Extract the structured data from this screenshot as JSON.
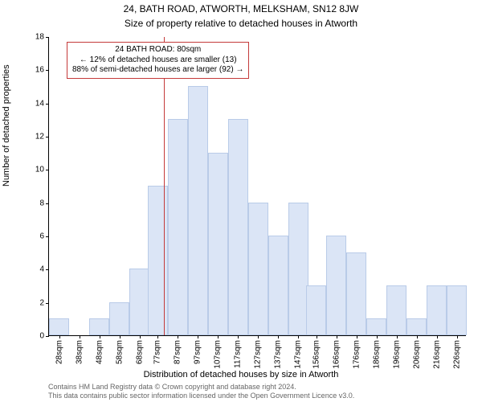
{
  "titles": {
    "line1": "24, BATH ROAD, ATWORTH, MELKSHAM, SN12 8JW",
    "line2": "Size of property relative to detached houses in Atworth"
  },
  "ylabel": "Number of detached properties",
  "xlabel": "Distribution of detached houses by size in Atworth",
  "footer": {
    "line1": "Contains HM Land Registry data © Crown copyright and database right 2024.",
    "line2": "This data contains public sector information licensed under the Open Government Licence v3.0."
  },
  "annotation": {
    "line1": "24 BATH ROAD: 80sqm",
    "line2": "← 12% of detached houses are smaller (13)",
    "line3": "88% of semi-detached houses are larger (92) →"
  },
  "chart": {
    "type": "histogram",
    "background_color": "#ffffff",
    "bar_fill": "#dbe5f6",
    "bar_border": "#b9cbe8",
    "refline_color": "#c43a3a",
    "annotation_border": "#c43a3a",
    "text_color": "#000000",
    "footer_color": "#666666",
    "tick_fontsize": 10,
    "label_fontsize": 11,
    "title_fontsize": 12,
    "annotation_fontsize": 10,
    "ylim": [
      0,
      18
    ],
    "ytick_step": 2,
    "yticks": [
      0,
      2,
      4,
      6,
      8,
      10,
      12,
      14,
      16,
      18
    ],
    "xlim": [
      23,
      231
    ],
    "xticks": [
      28,
      38,
      48,
      58,
      68,
      77,
      87,
      97,
      107,
      117,
      127,
      137,
      147,
      156,
      166,
      176,
      186,
      196,
      206,
      216,
      226
    ],
    "xtick_unit": "sqm",
    "bar_width_data": 10,
    "reference_x": 80,
    "bars": [
      {
        "x": 28,
        "y": 1
      },
      {
        "x": 38,
        "y": 0
      },
      {
        "x": 48,
        "y": 1
      },
      {
        "x": 58,
        "y": 2
      },
      {
        "x": 68,
        "y": 4
      },
      {
        "x": 77,
        "y": 9
      },
      {
        "x": 87,
        "y": 13
      },
      {
        "x": 97,
        "y": 15
      },
      {
        "x": 107,
        "y": 11
      },
      {
        "x": 117,
        "y": 13
      },
      {
        "x": 127,
        "y": 8
      },
      {
        "x": 137,
        "y": 6
      },
      {
        "x": 147,
        "y": 8
      },
      {
        "x": 156,
        "y": 3
      },
      {
        "x": 166,
        "y": 6
      },
      {
        "x": 176,
        "y": 5
      },
      {
        "x": 186,
        "y": 1
      },
      {
        "x": 196,
        "y": 3
      },
      {
        "x": 206,
        "y": 1
      },
      {
        "x": 216,
        "y": 3
      },
      {
        "x": 226,
        "y": 3
      }
    ]
  }
}
